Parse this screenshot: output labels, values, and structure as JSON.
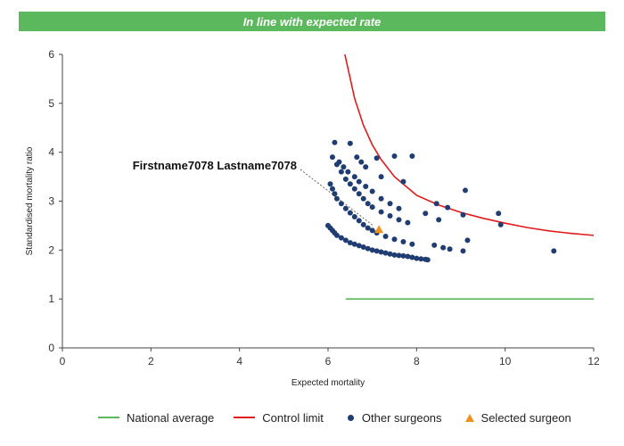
{
  "banner": {
    "text": "In line with expected rate",
    "color": "#5cb85c"
  },
  "chart_data": {
    "type": "scatter",
    "xlabel": "Expected mortality",
    "ylabel": "Standardised mortality ratio",
    "xlim": [
      0,
      12
    ],
    "ylim": [
      0,
      6
    ],
    "xticks": [
      0,
      2,
      4,
      6,
      8,
      10,
      12
    ],
    "yticks": [
      0,
      1,
      2,
      3,
      4,
      5,
      6
    ],
    "grid": false,
    "legend_position": "bottom",
    "annotation": {
      "text": "Firstname7078 Lastname7078",
      "target": [
        7.15,
        2.42
      ]
    },
    "series": [
      {
        "name": "National average",
        "kind": "line",
        "color": "#5cb85c",
        "x": [
          6.4,
          12
        ],
        "y": [
          1.0,
          1.0
        ]
      },
      {
        "name": "Control limit",
        "kind": "line",
        "color": "#e31a1c",
        "x": [
          6.38,
          6.6,
          6.8,
          7.0,
          7.2,
          7.5,
          8.0,
          8.5,
          9.0,
          9.5,
          10.0,
          10.5,
          11.0,
          11.5,
          12.0
        ],
        "y": [
          6.0,
          5.1,
          4.55,
          4.15,
          3.85,
          3.5,
          3.12,
          2.92,
          2.77,
          2.65,
          2.55,
          2.46,
          2.39,
          2.34,
          2.3
        ]
      },
      {
        "name": "Other surgeons",
        "kind": "scatter",
        "color": "#1f3d73",
        "x": [
          6.0,
          6.05,
          6.1,
          6.15,
          6.2,
          6.3,
          6.4,
          6.5,
          6.6,
          6.7,
          6.8,
          6.9,
          7.0,
          7.1,
          7.2,
          7.3,
          7.4,
          7.5,
          7.6,
          7.7,
          7.8,
          7.9,
          8.0,
          8.1,
          8.2,
          8.25,
          6.05,
          6.1,
          6.15,
          6.2,
          6.3,
          6.4,
          6.5,
          6.6,
          6.7,
          6.8,
          6.9,
          7.0,
          7.1,
          7.3,
          7.5,
          7.7,
          7.9,
          6.1,
          6.2,
          6.3,
          6.4,
          6.5,
          6.6,
          6.7,
          6.8,
          6.9,
          7.0,
          7.2,
          7.4,
          7.6,
          7.8,
          6.25,
          6.35,
          6.45,
          6.6,
          6.7,
          6.85,
          7.0,
          7.2,
          7.4,
          7.6,
          6.15,
          6.5,
          6.65,
          6.75,
          6.85,
          7.1,
          7.5,
          7.9,
          7.2,
          7.7,
          8.2,
          8.45,
          8.5,
          8.7,
          9.05,
          9.1,
          8.4,
          8.6,
          8.75,
          9.05,
          9.15,
          9.85,
          9.9,
          11.1
        ],
        "y": [
          2.5,
          2.45,
          2.4,
          2.35,
          2.3,
          2.25,
          2.2,
          2.15,
          2.12,
          2.09,
          2.06,
          2.03,
          2.0,
          1.98,
          1.96,
          1.94,
          1.92,
          1.9,
          1.89,
          1.88,
          1.87,
          1.85,
          1.83,
          1.82,
          1.81,
          1.8,
          3.35,
          3.25,
          3.15,
          3.05,
          2.95,
          2.85,
          2.76,
          2.68,
          2.6,
          2.52,
          2.45,
          2.4,
          2.35,
          2.28,
          2.22,
          2.17,
          2.12,
          3.9,
          3.75,
          3.6,
          3.45,
          3.35,
          3.25,
          3.15,
          3.05,
          2.95,
          2.88,
          2.78,
          2.7,
          2.62,
          2.56,
          3.8,
          3.7,
          3.6,
          3.5,
          3.4,
          3.3,
          3.2,
          3.05,
          2.95,
          2.85,
          4.2,
          4.18,
          3.9,
          3.8,
          3.7,
          3.88,
          3.92,
          3.92,
          3.5,
          3.4,
          2.75,
          2.95,
          2.62,
          2.87,
          2.72,
          3.22,
          2.1,
          2.05,
          2.02,
          1.98,
          2.2,
          2.75,
          2.52,
          1.98
        ]
      },
      {
        "name": "Selected surgeon",
        "kind": "scatter",
        "marker": "triangle",
        "color": "#f0901e",
        "x": [
          7.15
        ],
        "y": [
          2.42
        ]
      }
    ]
  }
}
